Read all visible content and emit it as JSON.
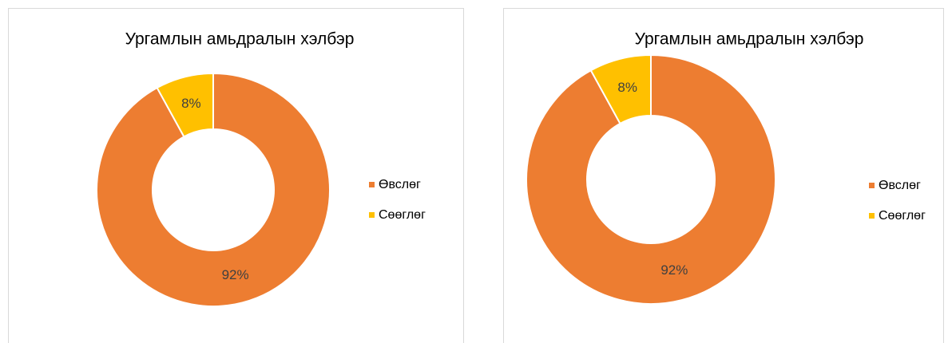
{
  "chart_data": [
    {
      "type": "donut",
      "title": "Ургамлын амьдралын хэлбэр",
      "categories": [
        "Өвслөг",
        "Сөөглөг"
      ],
      "values": [
        92,
        8
      ],
      "value_labels": [
        "92%",
        "8%"
      ],
      "colors": [
        "#ED7D31",
        "#FFC000"
      ],
      "legend": "right"
    },
    {
      "type": "donut",
      "title": "Ургамлын амьдралын хэлбэр",
      "categories": [
        "Өвслөг",
        "Сөөглөг"
      ],
      "values": [
        92,
        8
      ],
      "value_labels": [
        "92%",
        "8%"
      ],
      "colors": [
        "#ED7D31",
        "#FFC000"
      ],
      "legend": "right"
    }
  ]
}
